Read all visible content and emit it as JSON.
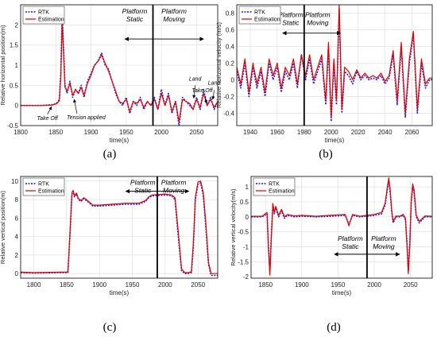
{
  "chart_data": [
    {
      "type": "line",
      "panel": "(a)",
      "xlabel": "time(s)",
      "ylabel": "Relative horizontal position(m)",
      "xlim": [
        1800,
        2080
      ],
      "ylim": [
        -0.5,
        2.5
      ],
      "xticks": [
        1800,
        1850,
        1900,
        1950,
        2000,
        2050
      ],
      "yticks": [
        -0.5,
        0,
        0.5,
        1,
        1.5,
        2
      ],
      "grid": true,
      "legend_position": "top-left",
      "divider_x": 1988,
      "series": [
        {
          "name": "RTK",
          "color": "#1f1fd6",
          "dash": true,
          "x": [
            1800,
            1830,
            1845,
            1851,
            1855,
            1857,
            1859,
            1861,
            1863,
            1866,
            1870,
            1874,
            1878,
            1882,
            1886,
            1890,
            1895,
            1900,
            1905,
            1910,
            1915,
            1920,
            1925,
            1930,
            1935,
            1940,
            1945,
            1950,
            1955,
            1960,
            1965,
            1970,
            1975,
            1980,
            1985,
            1990,
            1995,
            2000,
            2005,
            2010,
            2015,
            2020,
            2025,
            2030,
            2035,
            2040,
            2045,
            2050,
            2055,
            2060,
            2065,
            2070,
            2075,
            2080
          ],
          "y": [
            0,
            0,
            0.02,
            0.05,
            0.15,
            0.8,
            2.3,
            1.4,
            0.5,
            0.3,
            0.6,
            0.2,
            0.4,
            0.3,
            0.5,
            0.2,
            0.6,
            0.8,
            1.0,
            1.1,
            1.3,
            1.0,
            0.9,
            0.6,
            0.3,
            0.1,
            0.0,
            0.2,
            -0.2,
            0.1,
            0.0,
            0.2,
            -0.1,
            0.1,
            0.0,
            0.2,
            -0.1,
            0.4,
            0.0,
            0.3,
            -0.2,
            0.1,
            -0.5,
            0.2,
            0.1,
            0.0,
            -0.1,
            0.2,
            -0.1,
            0.4,
            0.0,
            0.2,
            -0.1,
            0.1
          ]
        },
        {
          "name": "Estimation",
          "color": "#e00000",
          "dash": false,
          "x": [
            1800,
            1830,
            1845,
            1851,
            1855,
            1857,
            1859,
            1861,
            1863,
            1866,
            1870,
            1874,
            1878,
            1882,
            1886,
            1890,
            1895,
            1900,
            1905,
            1910,
            1915,
            1920,
            1925,
            1930,
            1935,
            1940,
            1945,
            1950,
            1955,
            1960,
            1965,
            1970,
            1975,
            1980,
            1985,
            1990,
            1995,
            2000,
            2005,
            2010,
            2015,
            2020,
            2025,
            2030,
            2035,
            2040,
            2045,
            2050,
            2055,
            2060,
            2065,
            2070,
            2075,
            2080
          ],
          "y": [
            0,
            0,
            0.01,
            0.04,
            0.12,
            0.7,
            2.1,
            1.3,
            0.45,
            0.35,
            0.55,
            0.25,
            0.4,
            0.3,
            0.45,
            0.25,
            0.55,
            0.75,
            1.0,
            1.1,
            1.25,
            1.05,
            0.85,
            0.6,
            0.35,
            0.1,
            0.05,
            0.15,
            -0.15,
            0.1,
            0.05,
            0.15,
            -0.05,
            0.1,
            0.0,
            0.15,
            -0.1,
            0.3,
            0.0,
            0.25,
            -0.15,
            0.1,
            -0.4,
            0.15,
            0.1,
            0.05,
            -0.1,
            0.15,
            -0.05,
            0.3,
            0.0,
            0.15,
            -0.05,
            0.1
          ]
        }
      ],
      "annotations": {
        "platform_static": "Platform Static",
        "platform_moving": "Platform Moving",
        "take_off_1": "Take Off",
        "tension_applied": "Tension applied",
        "land_1": "Land",
        "take_off_2": "Take Off",
        "land_2": "Land"
      }
    },
    {
      "type": "line",
      "panel": "(b)",
      "xlabel": "time(s)",
      "ylabel": "Relative horizontal velocity (m/s)",
      "xlim": [
        1930,
        2075
      ],
      "ylim": [
        -0.55,
        0.9
      ],
      "xticks": [
        1940,
        1960,
        1980,
        2000,
        2020,
        2040,
        2060
      ],
      "yticks": [
        -0.4,
        -0.2,
        0,
        0.2,
        0.4,
        0.6,
        0.8
      ],
      "grid": true,
      "legend_position": "top-left",
      "divider_x": 1980,
      "series": [
        {
          "name": "RTK",
          "color": "#1f1fd6",
          "dash": true,
          "x": [
            1930,
            1933,
            1936,
            1939,
            1942,
            1945,
            1948,
            1951,
            1954,
            1957,
            1960,
            1963,
            1966,
            1969,
            1972,
            1975,
            1978,
            1981,
            1984,
            1987,
            1990,
            1993,
            1996,
            1998,
            2000,
            2002,
            2004,
            2006,
            2008,
            2010,
            2013,
            2016,
            2019,
            2022,
            2025,
            2028,
            2031,
            2034,
            2037,
            2040,
            2043,
            2046,
            2049,
            2052,
            2055,
            2058,
            2061,
            2064,
            2067,
            2070,
            2073,
            2075
          ],
          "y": [
            0.1,
            -0.1,
            0.2,
            -0.2,
            0.15,
            -0.1,
            0.1,
            -0.2,
            0.2,
            0.0,
            0.15,
            -0.15,
            0.1,
            0.0,
            0.2,
            -0.1,
            0.3,
            0.0,
            0.25,
            -0.05,
            0.1,
            0.25,
            -0.3,
            0.4,
            -0.5,
            0.2,
            -0.3,
            0.85,
            -0.4,
            0.1,
            0.05,
            -0.05,
            0.1,
            0.0,
            0.05,
            0.0,
            0.02,
            0.0,
            0.05,
            -0.05,
            0.02,
            0.3,
            -0.3,
            0.4,
            -0.45,
            0.2,
            0.55,
            -0.4,
            0.2,
            -0.1,
            0.0,
            0.0
          ]
        },
        {
          "name": "Estimation",
          "color": "#e00000",
          "dash": false,
          "x": [
            1930,
            1933,
            1936,
            1939,
            1942,
            1945,
            1948,
            1951,
            1954,
            1957,
            1960,
            1963,
            1966,
            1969,
            1972,
            1975,
            1978,
            1981,
            1984,
            1987,
            1990,
            1993,
            1996,
            1998,
            2000,
            2002,
            2004,
            2006,
            2008,
            2010,
            2013,
            2016,
            2019,
            2022,
            2025,
            2028,
            2031,
            2034,
            2037,
            2040,
            2043,
            2046,
            2049,
            2052,
            2055,
            2058,
            2061,
            2064,
            2067,
            2070,
            2073,
            2075
          ],
          "y": [
            0.15,
            -0.05,
            0.25,
            -0.15,
            0.2,
            -0.05,
            0.15,
            -0.15,
            0.25,
            0.05,
            0.2,
            -0.1,
            0.15,
            0.05,
            0.25,
            -0.05,
            0.3,
            0.05,
            0.3,
            0.0,
            0.15,
            0.3,
            -0.25,
            0.45,
            -0.45,
            0.25,
            -0.25,
            0.9,
            -0.35,
            0.15,
            0.1,
            0.0,
            0.12,
            0.02,
            0.08,
            0.02,
            0.05,
            0.02,
            0.08,
            -0.02,
            0.05,
            0.35,
            -0.25,
            0.45,
            -0.4,
            0.25,
            0.58,
            -0.35,
            0.25,
            -0.05,
            0.02,
            0.02
          ]
        }
      ],
      "annotations": {
        "platform_static": "Platform Static",
        "platform_moving": "Platform Moving"
      }
    },
    {
      "type": "line",
      "panel": "(c)",
      "xlabel": "time(s)",
      "ylabel": "Relative vertical position(m)",
      "xlim": [
        1780,
        2080
      ],
      "ylim": [
        -0.5,
        10.5
      ],
      "xticks": [
        1800,
        1850,
        1900,
        1950,
        2000,
        2050
      ],
      "yticks": [
        0,
        2,
        4,
        6,
        8,
        10
      ],
      "grid": true,
      "legend_position": "top-left",
      "divider_x": 1988,
      "series": [
        {
          "name": "RTK",
          "color": "#1f1fd6",
          "dash": true,
          "x": [
            1780,
            1800,
            1840,
            1852,
            1855,
            1858,
            1860,
            1862,
            1865,
            1868,
            1872,
            1876,
            1880,
            1885,
            1890,
            1900,
            1920,
            1940,
            1960,
            1970,
            1975,
            1980,
            2000,
            2010,
            2015,
            2020,
            2025,
            2030,
            2035,
            2040,
            2043,
            2046,
            2050,
            2054,
            2058,
            2062,
            2066,
            2070,
            2075,
            2080
          ],
          "y": [
            0.1,
            0.05,
            0.1,
            0.1,
            4.0,
            8.5,
            8.9,
            8.3,
            8.6,
            8.0,
            7.8,
            8.1,
            7.9,
            7.6,
            7.3,
            7.3,
            7.4,
            7.5,
            7.5,
            7.8,
            8.2,
            8.4,
            8.5,
            8.4,
            8.0,
            4.0,
            0.3,
            0.0,
            0.0,
            0.1,
            3.0,
            8.0,
            9.7,
            9.8,
            8.5,
            5.0,
            1.0,
            -0.2,
            -0.2,
            -0.2
          ]
        },
        {
          "name": "Estimation",
          "color": "#e00000",
          "dash": false,
          "x": [
            1780,
            1800,
            1840,
            1852,
            1855,
            1858,
            1860,
            1862,
            1865,
            1868,
            1872,
            1876,
            1880,
            1885,
            1890,
            1900,
            1920,
            1940,
            1960,
            1970,
            1975,
            1980,
            2000,
            2010,
            2015,
            2020,
            2025,
            2030,
            2035,
            2040,
            2043,
            2046,
            2050,
            2054,
            2058,
            2062,
            2066,
            2070,
            2075,
            2080
          ],
          "y": [
            0.15,
            0.1,
            0.15,
            0.15,
            4.3,
            8.7,
            9.0,
            8.4,
            8.7,
            8.1,
            7.9,
            8.2,
            8.0,
            7.7,
            7.4,
            7.4,
            7.5,
            7.6,
            7.6,
            7.9,
            8.3,
            8.5,
            8.6,
            8.5,
            8.2,
            4.5,
            0.5,
            0.1,
            0.1,
            0.2,
            3.4,
            8.3,
            9.9,
            10.0,
            8.8,
            5.4,
            1.2,
            0.0,
            0.0,
            0.0
          ]
        }
      ],
      "annotations": {
        "platform_static": "Platform Static",
        "platform_moving": "Platform Moving"
      }
    },
    {
      "type": "line",
      "panel": "(d)",
      "xlabel": "time(s)",
      "ylabel": "Relative vertical velocity(m/s)",
      "xlim": [
        1830,
        2080
      ],
      "ylim": [
        -2.05,
        1.35
      ],
      "xticks": [
        1850,
        1900,
        1950,
        2000,
        2050
      ],
      "yticks": [
        -2,
        -1.5,
        -1,
        -0.5,
        0,
        0.5,
        1
      ],
      "grid": true,
      "legend_position": "top-left",
      "divider_x": 1990,
      "series": [
        {
          "name": "RTK",
          "color": "#1f1fd6",
          "dash": true,
          "x": [
            1830,
            1845,
            1852,
            1854,
            1856,
            1858,
            1860,
            1862,
            1864,
            1868,
            1872,
            1876,
            1880,
            1890,
            1900,
            1920,
            1940,
            1960,
            1965,
            1970,
            1980,
            1990,
            2000,
            2010,
            2015,
            2018,
            2020,
            2022,
            2024,
            2026,
            2030,
            2035,
            2040,
            2043,
            2045,
            2047,
            2049,
            2051,
            2053,
            2055,
            2058,
            2062,
            2070,
            2080
          ],
          "y": [
            0.0,
            0.0,
            0.1,
            -1.0,
            -1.8,
            -0.6,
            0.4,
            0.1,
            0.3,
            0.0,
            0.2,
            -0.05,
            0.05,
            0.0,
            0.02,
            0.0,
            0.02,
            0.05,
            -0.25,
            0.05,
            0.0,
            0.02,
            0.05,
            0.1,
            0.4,
            0.9,
            1.2,
            0.8,
            0.2,
            -0.2,
            0.0,
            0.0,
            0.05,
            -0.1,
            -0.8,
            -1.8,
            -0.9,
            0.5,
            1.0,
            0.8,
            0.0,
            -0.2,
            0.0,
            0.0
          ]
        },
        {
          "name": "Estimation",
          "color": "#e00000",
          "dash": false,
          "x": [
            1830,
            1845,
            1852,
            1854,
            1856,
            1858,
            1860,
            1862,
            1864,
            1868,
            1872,
            1876,
            1880,
            1890,
            1900,
            1920,
            1940,
            1960,
            1965,
            1970,
            1980,
            1990,
            2000,
            2010,
            2015,
            2018,
            2020,
            2022,
            2024,
            2026,
            2030,
            2035,
            2040,
            2043,
            2045,
            2047,
            2049,
            2051,
            2053,
            2055,
            2058,
            2062,
            2070,
            2080
          ],
          "y": [
            0.02,
            0.02,
            0.15,
            -1.1,
            -1.95,
            -0.7,
            0.45,
            0.15,
            0.35,
            0.05,
            0.25,
            0.0,
            0.08,
            0.03,
            0.05,
            0.02,
            0.05,
            0.08,
            -0.3,
            0.08,
            0.02,
            0.05,
            0.08,
            0.15,
            0.45,
            1.0,
            1.3,
            0.9,
            0.25,
            -0.15,
            0.03,
            0.02,
            0.08,
            -0.05,
            -0.9,
            -1.9,
            -1.0,
            0.55,
            1.1,
            0.9,
            0.05,
            -0.15,
            0.03,
            0.02
          ]
        }
      ],
      "annotations": {
        "platform_static": "Platform Static",
        "platform_moving": "Platform Moving"
      }
    }
  ]
}
